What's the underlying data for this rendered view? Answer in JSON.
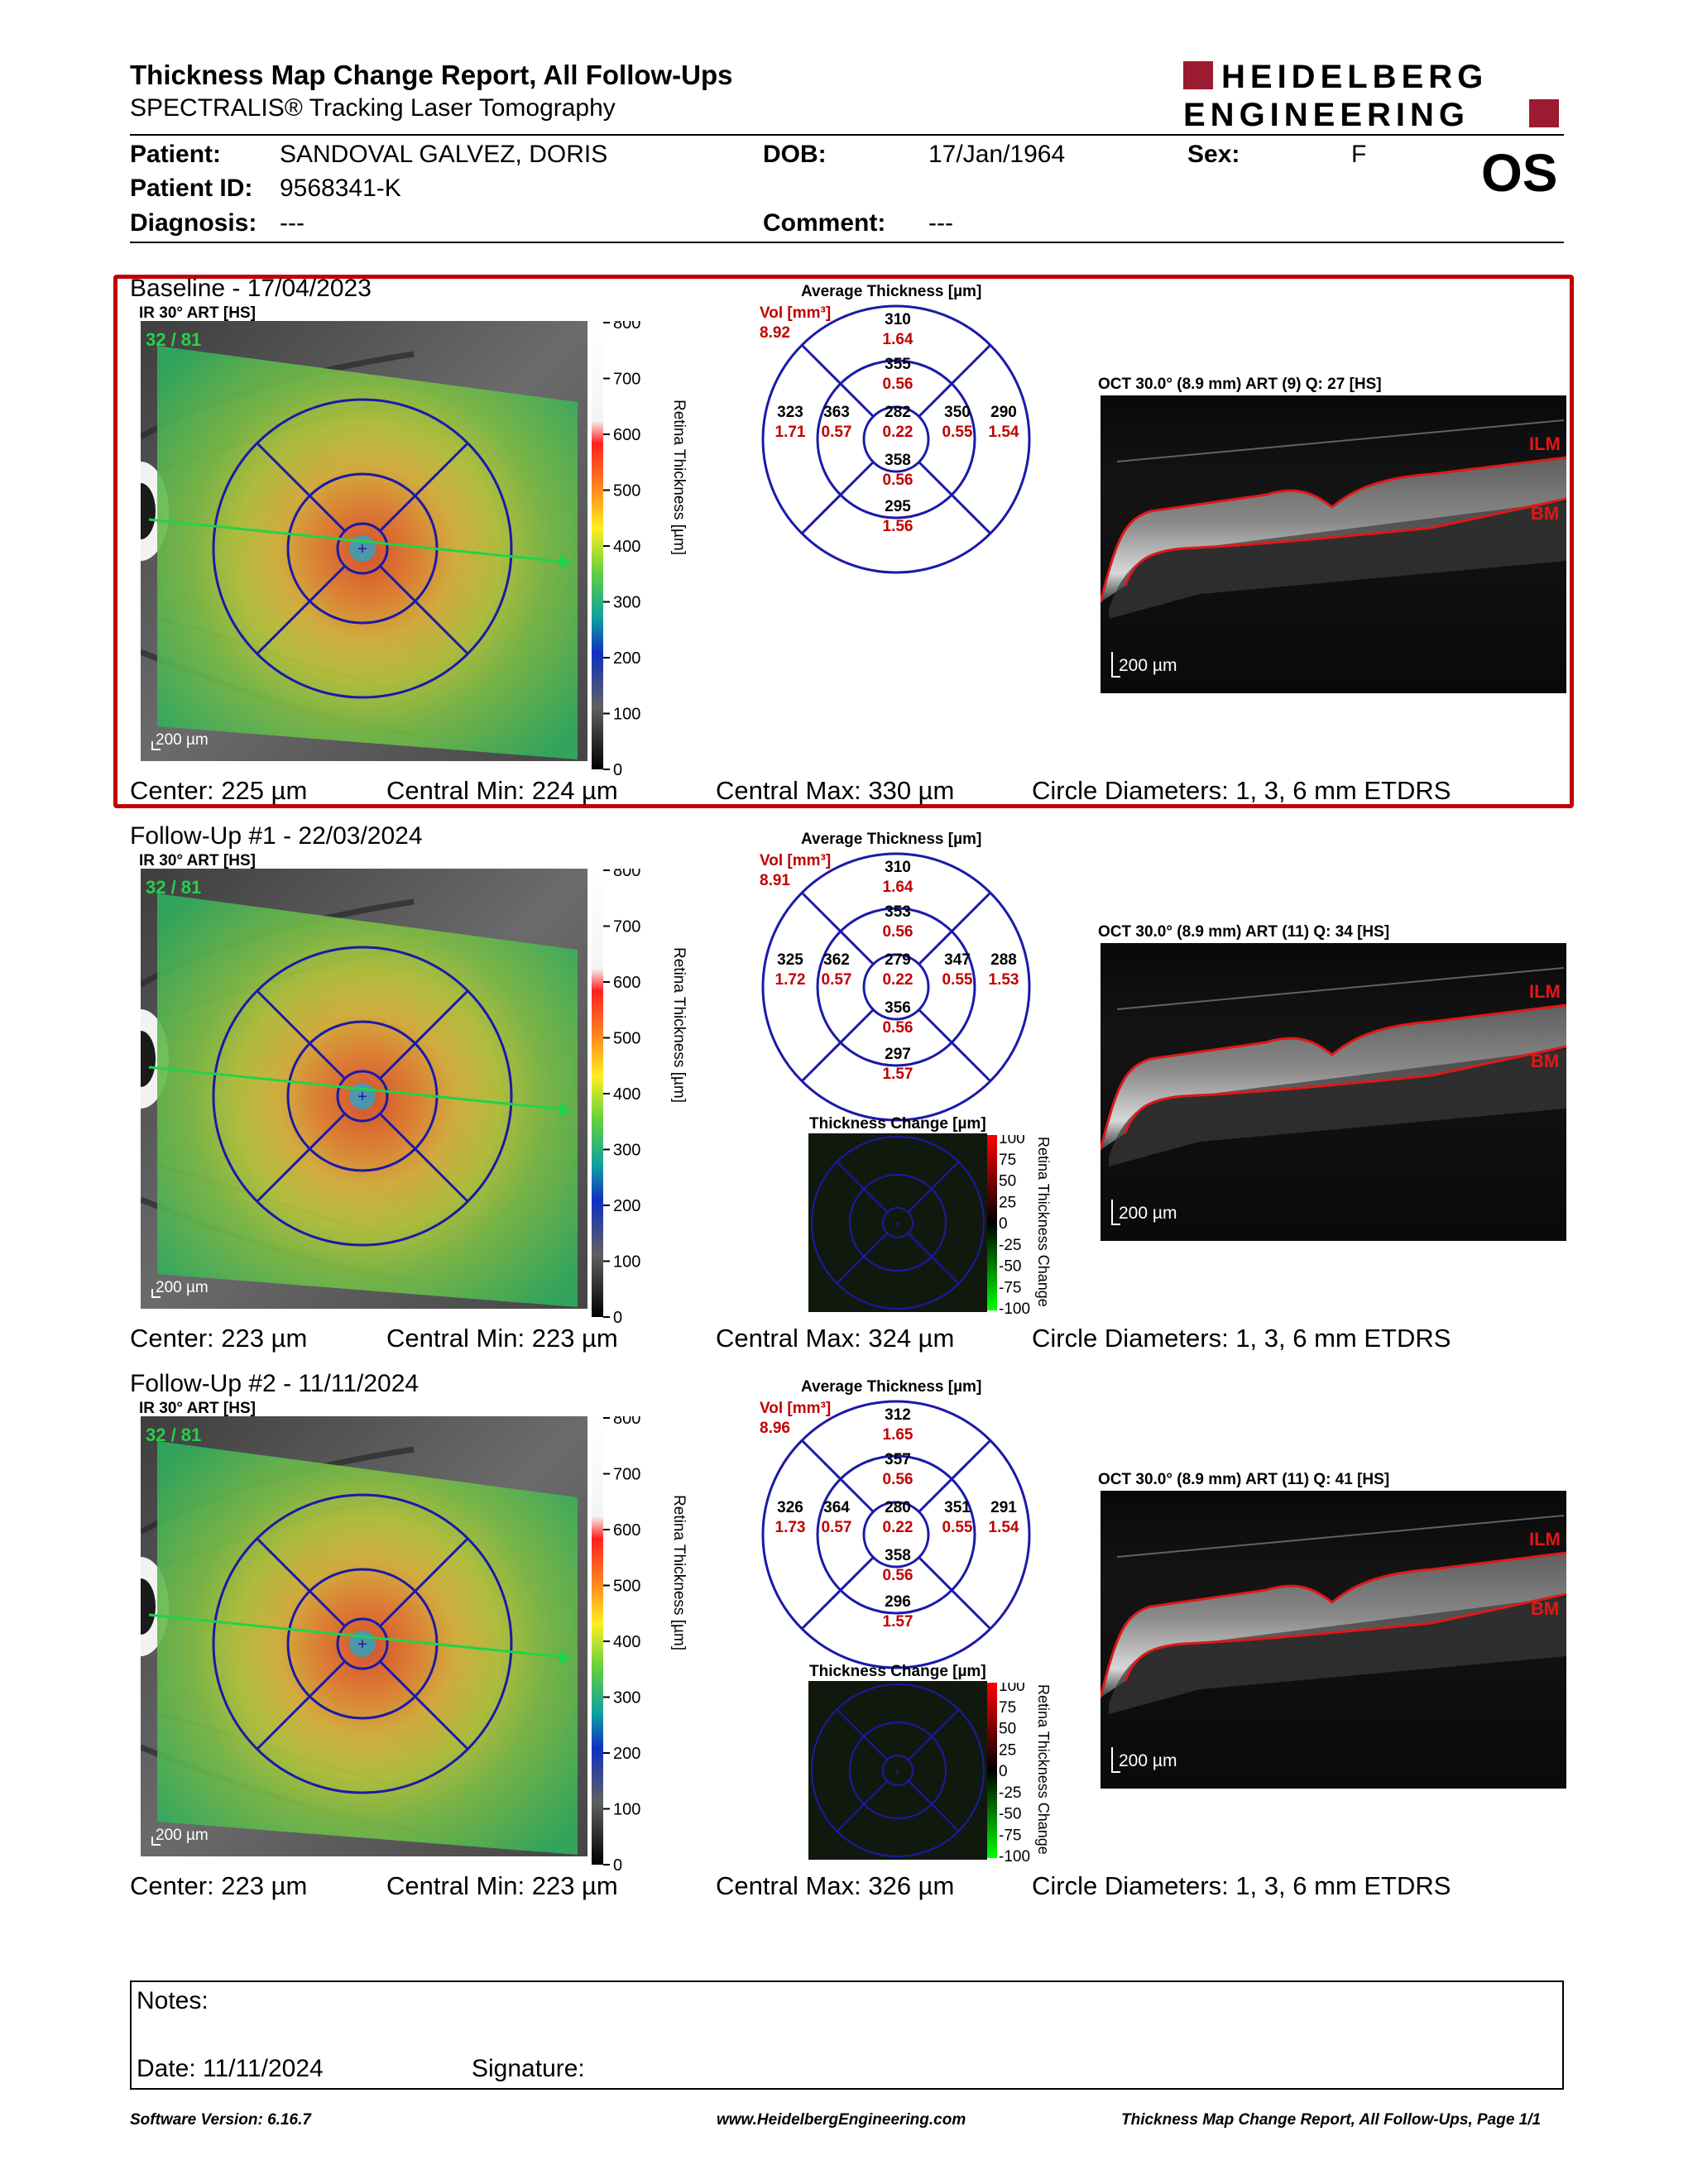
{
  "header": {
    "title": "Thickness Map Change Report, All Follow-Ups",
    "subtitle": "SPECTRALIS® Tracking Laser Tomography",
    "logo_line1": "HEIDELBERG",
    "logo_line2": "ENGINEERING",
    "logo_color": "#9b1b30"
  },
  "patient": {
    "name_label": "Patient:",
    "name": "SANDOVAL GALVEZ, DORIS",
    "id_label": "Patient ID:",
    "id": "9568341-K",
    "diagnosis_label": "Diagnosis:",
    "diagnosis": "---",
    "dob_label": "DOB:",
    "dob": "17/Jan/1964",
    "comment_label": "Comment:",
    "comment": "---",
    "sex_label": "Sex:",
    "sex": "F",
    "eye": "OS"
  },
  "sections": [
    {
      "title": "Baseline - 17/04/2023",
      "ir_label": "IR 30° ART [HS]",
      "frame_count": "32 / 81",
      "scale": "200 µm",
      "colorbar_ticks": [
        "800",
        "700",
        "600",
        "500",
        "400",
        "300",
        "200",
        "100",
        "0"
      ],
      "colorbar_title": "Retina Thickness [µm]",
      "avg_title": "Average Thickness [µm]",
      "vol_label": "Vol [mm³]",
      "vol": "8.92",
      "sectors": {
        "center": [
          "282",
          "0.22"
        ],
        "inner_top": [
          "355",
          "0.56"
        ],
        "inner_left": [
          "363",
          "0.57"
        ],
        "inner_right": [
          "350",
          "0.55"
        ],
        "inner_bottom": [
          "358",
          "0.56"
        ],
        "outer_top": [
          "310",
          "1.64"
        ],
        "outer_left": [
          "323",
          "1.71"
        ],
        "outer_right": [
          "290",
          "1.54"
        ],
        "outer_bottom": [
          "295",
          "1.56"
        ]
      },
      "oct_label": "OCT 30.0° (8.9 mm) ART (9) Q: 27 [HS]",
      "oct_scale": "200 µm",
      "ilm": "ILM",
      "bm": "BM",
      "change_title": "",
      "change_ticks": [],
      "change_axis": "",
      "center": "Center: 225 µm",
      "central_min": "Central Min: 224 µm",
      "central_max": "Central Max: 330 µm",
      "circles": "Circle Diameters:  1, 3, 6 mm ETDRS"
    },
    {
      "title": "Follow-Up #1 - 22/03/2024",
      "ir_label": "IR 30° ART [HS]",
      "frame_count": "32 / 81",
      "scale": "200 µm",
      "colorbar_ticks": [
        "800",
        "700",
        "600",
        "500",
        "400",
        "300",
        "200",
        "100",
        "0"
      ],
      "colorbar_title": "Retina Thickness [µm]",
      "avg_title": "Average Thickness [µm]",
      "vol_label": "Vol [mm³]",
      "vol": "8.91",
      "sectors": {
        "center": [
          "279",
          "0.22"
        ],
        "inner_top": [
          "353",
          "0.56"
        ],
        "inner_left": [
          "362",
          "0.57"
        ],
        "inner_right": [
          "347",
          "0.55"
        ],
        "inner_bottom": [
          "356",
          "0.56"
        ],
        "outer_top": [
          "310",
          "1.64"
        ],
        "outer_left": [
          "325",
          "1.72"
        ],
        "outer_right": [
          "288",
          "1.53"
        ],
        "outer_bottom": [
          "297",
          "1.57"
        ]
      },
      "oct_label": "OCT 30.0° (8.9 mm) ART (11) Q: 34 [HS]",
      "oct_scale": "200 µm",
      "ilm": "ILM",
      "bm": "BM",
      "change_title": "Thickness Change [µm]",
      "change_ticks": [
        "100",
        "75",
        "50",
        "25",
        "0",
        "-25",
        "-50",
        "-75",
        "-100"
      ],
      "change_axis": "Retina Thickness Change",
      "center": "Center: 223 µm",
      "central_min": "Central Min: 223 µm",
      "central_max": "Central Max: 324 µm",
      "circles": "Circle Diameters:  1, 3, 6 mm ETDRS"
    },
    {
      "title": "Follow-Up #2 - 11/11/2024",
      "ir_label": "IR 30° ART [HS]",
      "frame_count": "32 / 81",
      "scale": "200 µm",
      "colorbar_ticks": [
        "800",
        "700",
        "600",
        "500",
        "400",
        "300",
        "200",
        "100",
        "0"
      ],
      "colorbar_title": "Retina Thickness [µm]",
      "avg_title": "Average Thickness [µm]",
      "vol_label": "Vol [mm³]",
      "vol": "8.96",
      "sectors": {
        "center": [
          "280",
          "0.22"
        ],
        "inner_top": [
          "357",
          "0.56"
        ],
        "inner_left": [
          "364",
          "0.57"
        ],
        "inner_right": [
          "351",
          "0.55"
        ],
        "inner_bottom": [
          "358",
          "0.56"
        ],
        "outer_top": [
          "312",
          "1.65"
        ],
        "outer_left": [
          "326",
          "1.73"
        ],
        "outer_right": [
          "291",
          "1.54"
        ],
        "outer_bottom": [
          "296",
          "1.57"
        ]
      },
      "oct_label": "OCT 30.0° (8.9 mm) ART (11) Q: 41 [HS]",
      "oct_scale": "200 µm",
      "ilm": "ILM",
      "bm": "BM",
      "change_title": "Thickness Change [µm]",
      "change_ticks": [
        "100",
        "75",
        "50",
        "25",
        "0",
        "-25",
        "-50",
        "-75",
        "-100"
      ],
      "change_axis": "Retina Thickness Change",
      "center": "Center: 223 µm",
      "central_min": "Central Min: 223 µm",
      "central_max": "Central Max: 326 µm",
      "circles": "Circle Diameters:  1, 3, 6 mm ETDRS"
    }
  ],
  "notes": {
    "notes_label": "Notes:",
    "date_label": "Date: 11/11/2024",
    "signature_label": "Signature:"
  },
  "footer": {
    "software": "Software Version: 6.16.7",
    "website": "www.HeidelbergEngineering.com",
    "page": "Thickness Map Change Report, All Follow-Ups, Page 1/1"
  },
  "colors": {
    "highlight": "#c00000",
    "etdrs_grid": "#1a1aa8",
    "value_red": "#c00000"
  }
}
